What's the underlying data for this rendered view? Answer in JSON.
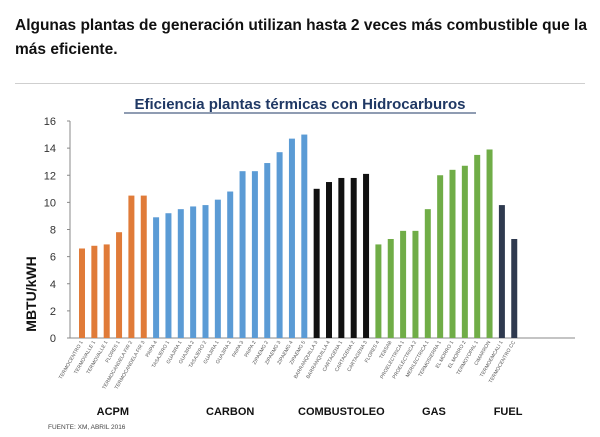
{
  "headline": "Algunas plantas de generación utilizan hasta 2 veces más combustible que la más eficiente.",
  "chart_data": {
    "type": "bar",
    "title": "Eficiencia plantas térmicas con Hidrocarburos",
    "xlabel": "",
    "ylabel": "MBTU/kWH",
    "ylim": [
      0,
      16
    ],
    "yticks": [
      0,
      2,
      4,
      6,
      8,
      10,
      12,
      14,
      16
    ],
    "grid": false,
    "source": "FUENTE: XM, ABRIL 2016",
    "groups": [
      {
        "name": "ACPM",
        "color": "#e07b39",
        "bars": [
          {
            "label": "TERMOCENTRO 1",
            "value": 6.6
          },
          {
            "label": "TERMOVALLE 1",
            "value": 6.8
          },
          {
            "label": "TERMOVALLE 1",
            "value": 6.9
          },
          {
            "label": "FLORES 1",
            "value": 7.8
          },
          {
            "label": "TERMOCANDELA FIR 2",
            "value": 10.5
          },
          {
            "label": "TERMOCANDELA FIR 3",
            "value": 10.5
          }
        ]
      },
      {
        "name": "CARBON",
        "color": "#5b9bd5",
        "bars": [
          {
            "label": "PAIPA 4",
            "value": 8.9
          },
          {
            "label": "TASAJERO 1",
            "value": 9.2
          },
          {
            "label": "GUAJIRA 1",
            "value": 9.5
          },
          {
            "label": "GUAJIRA 2",
            "value": 9.7
          },
          {
            "label": "TASAJERO 2",
            "value": 9.8
          },
          {
            "label": "GUAJIRA 1",
            "value": 10.2
          },
          {
            "label": "GUAJIRA 2",
            "value": 10.8
          },
          {
            "label": "PAIPA 3",
            "value": 12.3
          },
          {
            "label": "PAIPA 2",
            "value": 12.3
          },
          {
            "label": "ZIPAEMG 2",
            "value": 12.9
          },
          {
            "label": "ZIPAEMG 3",
            "value": 13.7
          },
          {
            "label": "ZIPAEMG 4",
            "value": 14.7
          },
          {
            "label": "ZIPAEMG 5",
            "value": 15.0
          }
        ]
      },
      {
        "name": "COMBUSTOLEO",
        "color": "#111111",
        "bars": [
          {
            "label": "BARRANQUILLA 3",
            "value": 11.0
          },
          {
            "label": "BARRANQUILLA 4",
            "value": 11.5
          },
          {
            "label": "CARTAGENA 1",
            "value": 11.8
          },
          {
            "label": "CARTAGENA 2",
            "value": 11.8
          },
          {
            "label": "CARTAGENA 3",
            "value": 12.1
          }
        ]
      },
      {
        "name": "GAS",
        "color": "#70ad47",
        "bars": [
          {
            "label": "FLORES 4",
            "value": 6.9
          },
          {
            "label": "TEBSAB",
            "value": 7.3
          },
          {
            "label": "PROELECTRICA 1",
            "value": 7.9
          },
          {
            "label": "PROELECTRICA 2",
            "value": 7.9
          },
          {
            "label": "MERILECTRICA 1",
            "value": 9.5
          },
          {
            "label": "TERMOSIERRA 1",
            "value": 12.0
          },
          {
            "label": "EL MORRO 1",
            "value": 12.4
          },
          {
            "label": "EL MORRO 2",
            "value": 12.7
          },
          {
            "label": "TERMOYOPAL 1",
            "value": 13.5
          },
          {
            "label": "CIMARRON",
            "value": 13.9
          }
        ]
      },
      {
        "name": "FUEL",
        "color": "#2f3a4f",
        "bars": [
          {
            "label": "TERMOEMCALI 1",
            "value": 9.8
          },
          {
            "label": "TERMOCENTRO CC",
            "value": 7.3
          }
        ]
      }
    ]
  }
}
